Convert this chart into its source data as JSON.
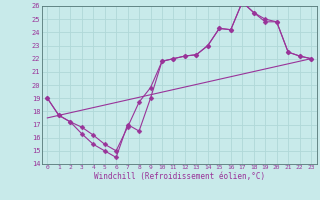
{
  "xlabel": "Windchill (Refroidissement éolien,°C)",
  "background_color": "#c8eaea",
  "grid_color": "#b0d8d8",
  "line_color": "#993399",
  "xlim": [
    -0.5,
    23.5
  ],
  "ylim": [
    14,
    26
  ],
  "xticks": [
    0,
    1,
    2,
    3,
    4,
    5,
    6,
    7,
    8,
    9,
    10,
    11,
    12,
    13,
    14,
    15,
    16,
    17,
    18,
    19,
    20,
    21,
    22,
    23
  ],
  "yticks": [
    14,
    15,
    16,
    17,
    18,
    19,
    20,
    21,
    22,
    23,
    24,
    25,
    26
  ],
  "line1_x": [
    0,
    1,
    2,
    3,
    4,
    5,
    6,
    7,
    8,
    9,
    10,
    11,
    12,
    13,
    14,
    15,
    16,
    17,
    18,
    19,
    20,
    21,
    22,
    23
  ],
  "line1_y": [
    19,
    17.7,
    17.2,
    16.3,
    15.5,
    15.0,
    14.5,
    17.0,
    16.5,
    19.0,
    21.8,
    22.0,
    22.2,
    22.3,
    23.0,
    24.3,
    24.2,
    26.3,
    25.5,
    25.0,
    24.8,
    22.5,
    22.2,
    22.0
  ],
  "line2_x": [
    0,
    1,
    2,
    3,
    4,
    5,
    6,
    7,
    8,
    9,
    10,
    11,
    12,
    13,
    14,
    15,
    16,
    17,
    18,
    19,
    20,
    21,
    22,
    23
  ],
  "line2_y": [
    19,
    17.7,
    17.2,
    16.8,
    16.2,
    15.5,
    15.0,
    16.8,
    18.7,
    19.8,
    21.8,
    22.0,
    22.2,
    22.3,
    23.0,
    24.3,
    24.2,
    26.3,
    25.5,
    24.8,
    24.8,
    22.5,
    22.2,
    22.0
  ],
  "line3_x": [
    0,
    23
  ],
  "line3_y": [
    17.5,
    22.0
  ]
}
